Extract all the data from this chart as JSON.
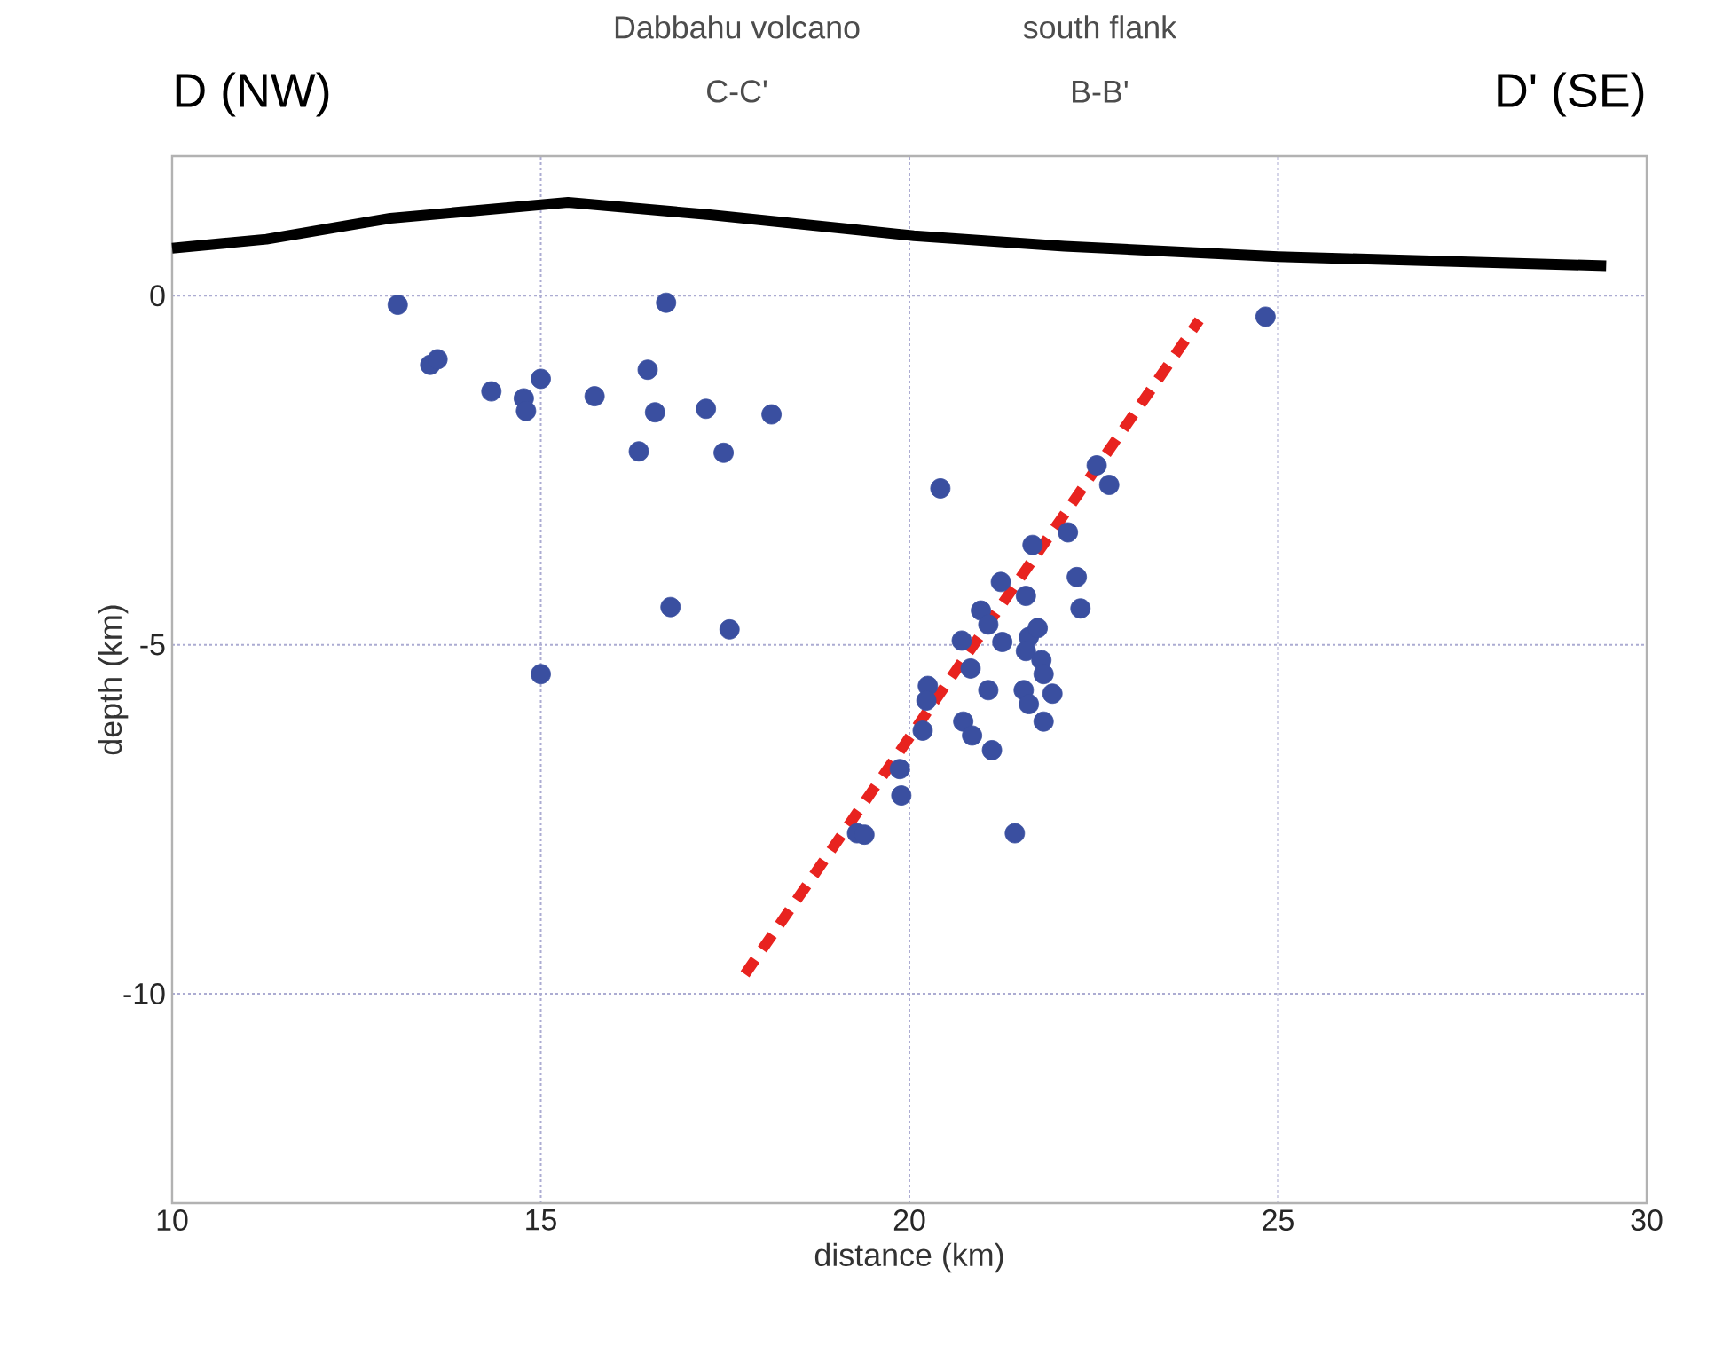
{
  "chart_data": {
    "type": "scatter",
    "xlabel": "distance (km)",
    "ylabel": "depth (km)",
    "xlim": [
      10,
      30
    ],
    "ylim": [
      -13,
      2
    ],
    "xticks": [
      10,
      15,
      20,
      25,
      30
    ],
    "yticks": [
      0,
      -5,
      -10
    ],
    "grid": true,
    "annotations": [
      "D (NW)",
      "D' (SE)",
      "Dabbahu volcano",
      "C-C'",
      "south flank",
      "B-B'"
    ],
    "series": [
      {
        "type": "scatter",
        "marker": "circle",
        "color": "#3a4fa0",
        "x": [
          13.06,
          13.5,
          13.6,
          14.33,
          14.77,
          14.8,
          15.0,
          15.73,
          16.45,
          16.55,
          16.7,
          16.33,
          17.24,
          17.48,
          18.13,
          16.76,
          17.56,
          15.0,
          24.83,
          20.42,
          22.71,
          22.54,
          22.15,
          21.67,
          22.27,
          22.32,
          21.24,
          21.58,
          20.97,
          21.07,
          20.71,
          21.26,
          21.62,
          21.74,
          21.58,
          21.79,
          20.83,
          21.82,
          20.25,
          21.07,
          21.55,
          21.94,
          20.23,
          21.62,
          21.82,
          20.18,
          20.73,
          20.85,
          21.12,
          19.87,
          19.89,
          19.29,
          19.39,
          21.43
        ],
        "values": [
          -0.13,
          -0.99,
          -0.91,
          -1.37,
          -1.47,
          -1.65,
          -1.19,
          -1.44,
          -1.06,
          -1.67,
          -0.1,
          -2.23,
          -1.62,
          -2.25,
          -1.7,
          -4.46,
          -4.78,
          -5.42,
          -0.3,
          -2.76,
          -2.71,
          -2.43,
          -3.39,
          -3.57,
          -4.03,
          -4.48,
          -4.1,
          -4.3,
          -4.51,
          -4.71,
          -4.94,
          -4.96,
          -4.89,
          -4.76,
          -5.09,
          -5.22,
          -5.34,
          -5.42,
          -5.59,
          -5.65,
          -5.65,
          -5.7,
          -5.8,
          -5.85,
          -6.1,
          -6.23,
          -6.1,
          -6.3,
          -6.51,
          -6.78,
          -7.16,
          -7.7,
          -7.72,
          -7.7
        ]
      },
      {
        "type": "line",
        "marker": "none",
        "color": "#000000",
        "line_style": "solid",
        "x": [
          10,
          11.28,
          12.96,
          15.37,
          17.29,
          20.06,
          22.1,
          25,
          29.45
        ],
        "values": [
          0.68,
          0.81,
          1.11,
          1.34,
          1.16,
          0.86,
          0.71,
          0.56,
          0.43
        ]
      },
      {
        "type": "line",
        "marker": "none",
        "color": "#e8231f",
        "line_style": "dashed",
        "x": [
          17.77,
          23.93
        ],
        "values": [
          -9.72,
          -0.35
        ]
      }
    ]
  }
}
